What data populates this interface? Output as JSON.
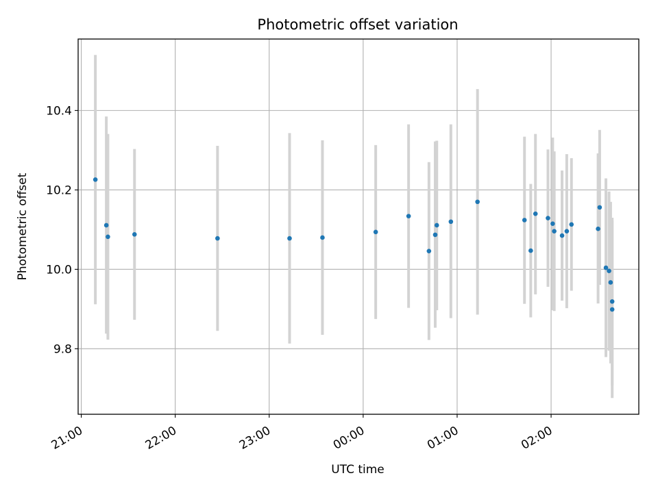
{
  "chart_data": {
    "type": "scatter",
    "title": "Photometric offset variation",
    "xlabel": "UTC time",
    "ylabel": "Photometric offset",
    "grid": true,
    "x_ticks": [
      {
        "value": "21:00",
        "label": "21:00"
      },
      {
        "value": "22:00",
        "label": "22:00"
      },
      {
        "value": "23:00",
        "label": "23:00"
      },
      {
        "value": "00:00",
        "label": "00:00"
      },
      {
        "value": "01:00",
        "label": "01:00"
      },
      {
        "value": "02:00",
        "label": "02:00"
      }
    ],
    "y_ticks": [
      9.8,
      10.0,
      10.2,
      10.4
    ],
    "xlim": [
      "20:58",
      "02:56"
    ],
    "ylim": [
      9.635,
      10.58
    ],
    "colors": {
      "point": "#1f77b4",
      "errorbar": "#d3d3d3",
      "grid": "#b0b0b0"
    },
    "points": [
      {
        "time": "21:09",
        "y": 10.226,
        "err_low": 9.912,
        "err_high": 10.54
      },
      {
        "time": "21:16",
        "y": 10.111,
        "err_low": 9.838,
        "err_high": 10.385
      },
      {
        "time": "21:17",
        "y": 10.082,
        "err_low": 9.823,
        "err_high": 10.341
      },
      {
        "time": "21:34",
        "y": 10.088,
        "err_low": 9.873,
        "err_high": 10.303
      },
      {
        "time": "22:27",
        "y": 10.078,
        "err_low": 9.845,
        "err_high": 10.311
      },
      {
        "time": "23:13",
        "y": 10.078,
        "err_low": 9.813,
        "err_high": 10.343
      },
      {
        "time": "23:34",
        "y": 10.08,
        "err_low": 9.835,
        "err_high": 10.325
      },
      {
        "time": "00:08",
        "y": 10.094,
        "err_low": 9.875,
        "err_high": 10.313
      },
      {
        "time": "00:29",
        "y": 10.134,
        "err_low": 9.903,
        "err_high": 10.365
      },
      {
        "time": "00:42",
        "y": 10.046,
        "err_low": 9.822,
        "err_high": 10.27
      },
      {
        "time": "00:46",
        "y": 10.087,
        "err_low": 9.853,
        "err_high": 10.322
      },
      {
        "time": "00:47",
        "y": 10.111,
        "err_low": 9.897,
        "err_high": 10.324
      },
      {
        "time": "00:56",
        "y": 10.12,
        "err_low": 9.877,
        "err_high": 10.365
      },
      {
        "time": "01:13",
        "y": 10.17,
        "err_low": 9.886,
        "err_high": 10.454
      },
      {
        "time": "01:43",
        "y": 10.124,
        "err_low": 9.913,
        "err_high": 10.334
      },
      {
        "time": "01:47",
        "y": 10.047,
        "err_low": 9.879,
        "err_high": 10.215
      },
      {
        "time": "01:50",
        "y": 10.14,
        "err_low": 9.937,
        "err_high": 10.341
      },
      {
        "time": "01:58",
        "y": 10.129,
        "err_low": 9.956,
        "err_high": 10.302
      },
      {
        "time": "02:01",
        "y": 10.115,
        "err_low": 9.897,
        "err_high": 10.332
      },
      {
        "time": "02:02",
        "y": 10.096,
        "err_low": 9.895,
        "err_high": 10.297
      },
      {
        "time": "02:07",
        "y": 10.085,
        "err_low": 9.921,
        "err_high": 10.249
      },
      {
        "time": "02:10",
        "y": 10.096,
        "err_low": 9.902,
        "err_high": 10.29
      },
      {
        "time": "02:13",
        "y": 10.113,
        "err_low": 9.946,
        "err_high": 10.28
      },
      {
        "time": "02:30",
        "y": 10.102,
        "err_low": 9.914,
        "err_high": 10.292
      },
      {
        "time": "02:31",
        "y": 10.156,
        "err_low": 9.961,
        "err_high": 10.351
      },
      {
        "time": "02:35",
        "y": 10.004,
        "err_low": 9.779,
        "err_high": 10.229
      },
      {
        "time": "02:37",
        "y": 9.996,
        "err_low": 9.795,
        "err_high": 10.196
      },
      {
        "time": "02:38",
        "y": 9.967,
        "err_low": 9.763,
        "err_high": 10.17
      },
      {
        "time": "02:39",
        "y": 9.899,
        "err_low": 9.676,
        "err_high": 10.123
      },
      {
        "time": "02:39",
        "y": 9.919,
        "err_low": 9.707,
        "err_high": 10.13
      }
    ]
  }
}
